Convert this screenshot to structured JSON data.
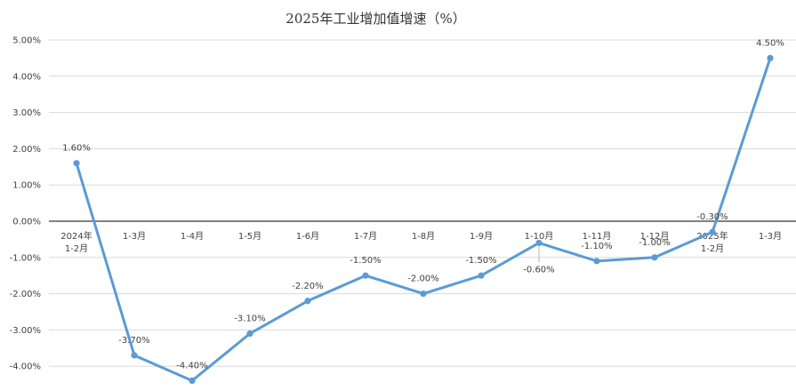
{
  "chart_data": {
    "type": "line",
    "title": "2025年工业增加值增速（%）",
    "xlabel": "",
    "ylabel": "",
    "categories": [
      [
        "2024年",
        "1-2月"
      ],
      [
        "1-3月"
      ],
      [
        "1-4月"
      ],
      [
        "1-5月"
      ],
      [
        "1-6月"
      ],
      [
        "1-7月"
      ],
      [
        "1-8月"
      ],
      [
        "1-9月"
      ],
      [
        "1-10月"
      ],
      [
        "1-11月"
      ],
      [
        "1-12月"
      ],
      [
        "2025年",
        "1-2月"
      ],
      [
        "1-3月"
      ]
    ],
    "values": [
      1.6,
      -3.7,
      -4.4,
      -3.1,
      -2.2,
      -1.5,
      -2.0,
      -1.5,
      -0.6,
      -1.1,
      -1.0,
      -0.3,
      4.5
    ],
    "value_labels": [
      "1.60%",
      "-3.70%",
      "-4.40%",
      "-3.10%",
      "-2.20%",
      "-1.50%",
      "-2.00%",
      "-1.50%",
      "-0.60%",
      "-1.10%",
      "-1.00%",
      "-0.30%",
      "4.50%"
    ],
    "label_positions": [
      "above",
      "above",
      "above",
      "above",
      "above",
      "above",
      "above",
      "above",
      "below",
      "above",
      "above",
      "above",
      "above"
    ],
    "y_ticks": [
      5,
      4,
      3,
      2,
      1,
      0,
      -1,
      -2,
      -3,
      -4
    ],
    "y_tick_labels": [
      "5.00%",
      "4.00%",
      "3.00%",
      "2.00%",
      "1.00%",
      "0.00%",
      "-1.00%",
      "-2.00%",
      "-3.00%",
      "-4.00%"
    ],
    "ylim": [
      -4.45,
      5.0
    ],
    "grid": true,
    "legend": "none",
    "line_color": "#5B9BD5",
    "grid_color": "#D9D9D9",
    "axis_color": "#000000"
  }
}
